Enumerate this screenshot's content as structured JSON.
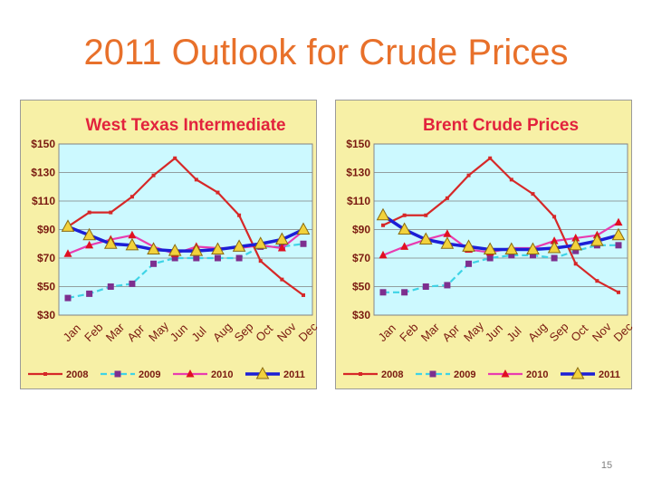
{
  "slide": {
    "title": "2011 Outlook for Crude Prices",
    "page_number": "15"
  },
  "colors": {
    "title": "#e8702a",
    "panel_bg": "#f7f0a6",
    "plot_bg": "#ccf9ff",
    "chart_title": "#e2233d",
    "axis_text": "#7a1a10",
    "s2008": "#d62828",
    "s2009": "#3fd4e6",
    "s2009_marker": "#7d2f8f",
    "s2010": "#e83cb0",
    "s2010_marker": "#e01020",
    "s2011": "#1c1fd6",
    "s2011_marker": "#f2d23c"
  },
  "chart_data": [
    {
      "type": "line",
      "title": "West Texas Intermediate",
      "categories": [
        "Jan",
        "Feb",
        "Mar",
        "Apr",
        "May",
        "Jun",
        "Jul",
        "Aug",
        "Sep",
        "Oct",
        "Nov",
        "Dec"
      ],
      "ylim": [
        30,
        150
      ],
      "yticks": [
        "$30",
        "$50",
        "$70",
        "$90",
        "$110",
        "$130",
        "$150"
      ],
      "grid": true,
      "legend": "bottom",
      "series": [
        {
          "name": "2008",
          "values": [
            92,
            102,
            102,
            113,
            128,
            140,
            125,
            116,
            100,
            68,
            55,
            44
          ]
        },
        {
          "name": "2009",
          "values": [
            42,
            45,
            50,
            52,
            66,
            70,
            70,
            70,
            70,
            78,
            78,
            80
          ]
        },
        {
          "name": "2010",
          "values": [
            73,
            79,
            83,
            86,
            78,
            73,
            78,
            77,
            77,
            79,
            77,
            89
          ]
        },
        {
          "name": "2011",
          "values": [
            92,
            86,
            80,
            79,
            76,
            75,
            75,
            76,
            78,
            80,
            83,
            90
          ]
        }
      ]
    },
    {
      "type": "line",
      "title": "Brent Crude Prices",
      "categories": [
        "Jan",
        "Feb",
        "Mar",
        "Apr",
        "May",
        "Jun",
        "Jul",
        "Aug",
        "Sep",
        "Oct",
        "Nov",
        "Dec"
      ],
      "ylim": [
        30,
        150
      ],
      "yticks": [
        "$30",
        "$50",
        "$70",
        "$90",
        "$110",
        "$130",
        "$150"
      ],
      "grid": true,
      "legend": "bottom",
      "series": [
        {
          "name": "2008",
          "values": [
            93,
            100,
            100,
            112,
            128,
            140,
            125,
            115,
            99,
            66,
            54,
            46
          ]
        },
        {
          "name": "2009",
          "values": [
            46,
            46,
            50,
            51,
            66,
            70,
            72,
            72,
            70,
            75,
            79,
            79
          ]
        },
        {
          "name": "2010",
          "values": [
            72,
            78,
            83,
            87,
            76,
            74,
            77,
            77,
            82,
            84,
            86,
            95
          ]
        },
        {
          "name": "2011",
          "values": [
            100,
            90,
            83,
            80,
            78,
            76,
            76,
            76,
            77,
            79,
            82,
            86
          ]
        }
      ]
    }
  ]
}
